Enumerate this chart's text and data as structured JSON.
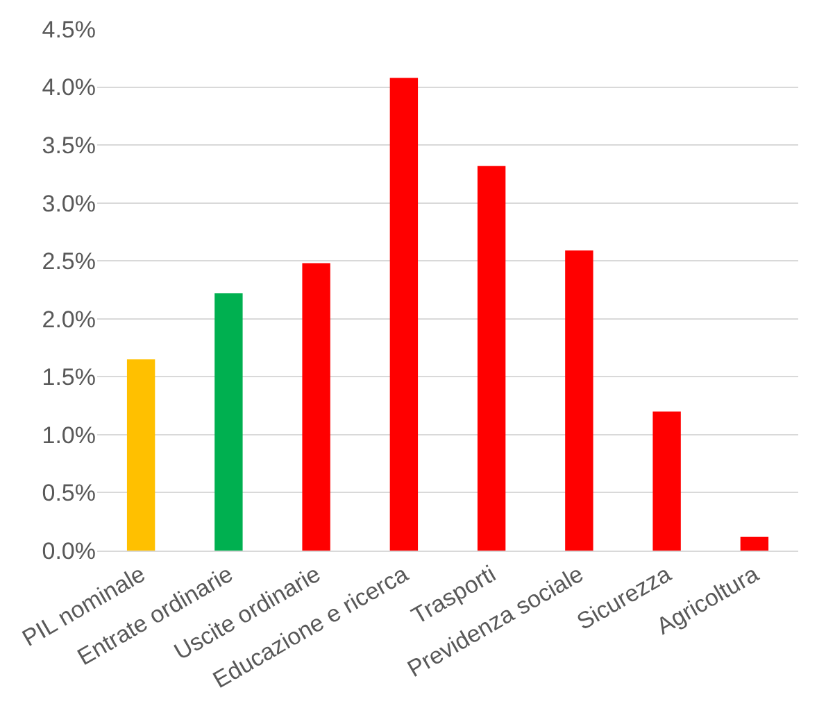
{
  "chart_data": {
    "type": "bar",
    "categories": [
      "PIL nominale",
      "Entrate ordinarie",
      "Uscite ordinarie",
      "Educazione e ricerca",
      "Trasporti",
      "Previdenza sociale",
      "Sicurezza",
      "Agricoltura"
    ],
    "values": [
      1.65,
      2.22,
      2.48,
      4.08,
      3.32,
      2.59,
      1.2,
      0.12
    ],
    "colors": [
      "#ffc000",
      "#00b050",
      "#ff0000",
      "#ff0000",
      "#ff0000",
      "#ff0000",
      "#ff0000",
      "#ff0000"
    ],
    "ylim": [
      0,
      4.5
    ],
    "yticks": [
      {
        "value": 0,
        "label": "0.0%"
      },
      {
        "value": 0.5,
        "label": "0.5%"
      },
      {
        "value": 1,
        "label": "1.0%"
      },
      {
        "value": 1.5,
        "label": "1.5%"
      },
      {
        "value": 2,
        "label": "2.0%"
      },
      {
        "value": 2.5,
        "label": "2.5%"
      },
      {
        "value": 3,
        "label": "3.0%"
      },
      {
        "value": 3.5,
        "label": "3.5%"
      },
      {
        "value": 4,
        "label": "4.0%"
      },
      {
        "value": 4.5,
        "label": "4.5%"
      }
    ],
    "grid": "y"
  }
}
